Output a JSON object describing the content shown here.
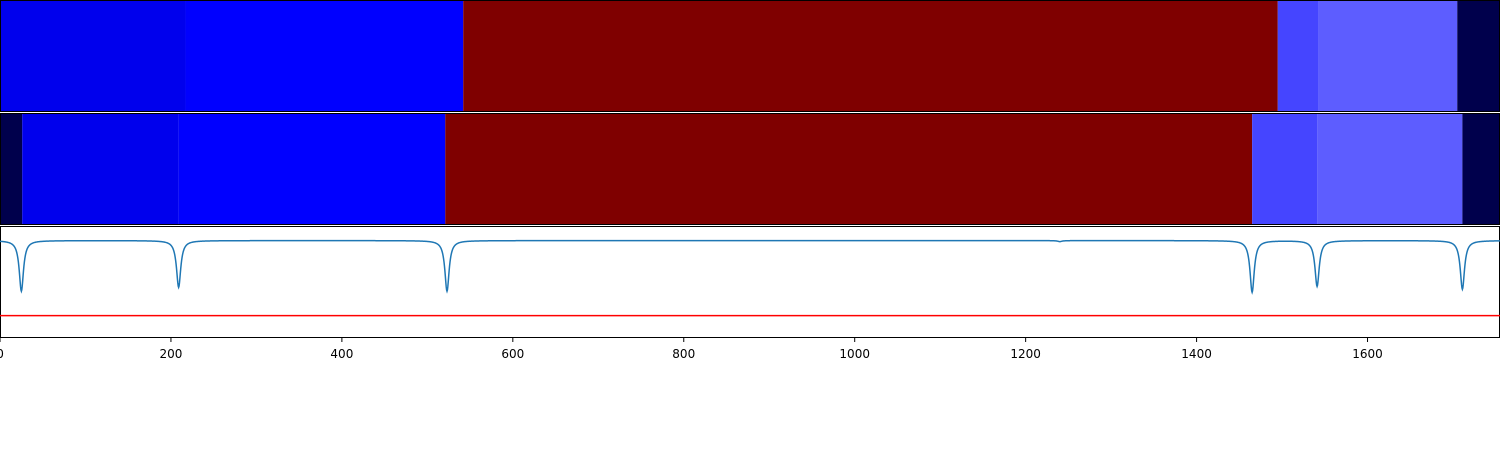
{
  "chart_data": {
    "type": "heatmap",
    "title": "",
    "xlabel": "",
    "ylabel": "",
    "xlim": [
      0,
      1755
    ],
    "x_ticks": [
      "0",
      "200",
      "400",
      "600",
      "800",
      "1000",
      "1200",
      "1400",
      "1600"
    ],
    "x_tick_values": [
      0,
      200,
      400,
      600,
      800,
      1000,
      1200,
      1400,
      1600
    ],
    "grid": false,
    "colormap": "seismic",
    "rows": [
      {
        "segments": [
          {
            "start": 0,
            "end": 217,
            "color": "#0000ed"
          },
          {
            "start": 217,
            "end": 542,
            "color": "#0000ff"
          },
          {
            "start": 542,
            "end": 1495,
            "color": "#7f0000"
          },
          {
            "start": 1495,
            "end": 1543,
            "color": "#4545ff"
          },
          {
            "start": 1543,
            "end": 1705,
            "color": "#5d5dff"
          },
          {
            "start": 1705,
            "end": 1755,
            "color": "#00004c"
          }
        ]
      },
      {
        "segments": [
          {
            "start": 0,
            "end": 26,
            "color": "#00004c"
          },
          {
            "start": 26,
            "end": 209,
            "color": "#0000ed"
          },
          {
            "start": 209,
            "end": 521,
            "color": "#0000ff"
          },
          {
            "start": 521,
            "end": 1465,
            "color": "#7f0000"
          },
          {
            "start": 1465,
            "end": 1541,
            "color": "#4545ff"
          },
          {
            "start": 1541,
            "end": 1711,
            "color": "#5d5dff"
          },
          {
            "start": 1711,
            "end": 1755,
            "color": "#00004c"
          }
        ]
      }
    ],
    "line_series": {
      "color": "#1f77b4",
      "baseline": 1.0,
      "ylim": [
        0,
        1.15
      ],
      "dips": [
        {
          "x": 25,
          "depth": 0.52
        },
        {
          "x": 209,
          "depth": 0.48
        },
        {
          "x": 523,
          "depth": 0.52
        },
        {
          "x": 1465,
          "depth": 0.53
        },
        {
          "x": 1541,
          "depth": 0.47
        },
        {
          "x": 1711,
          "depth": 0.5
        },
        {
          "x": 1240,
          "depth": 0.01
        }
      ]
    },
    "threshold": {
      "value": 0.23,
      "color": "#ff0000"
    }
  }
}
